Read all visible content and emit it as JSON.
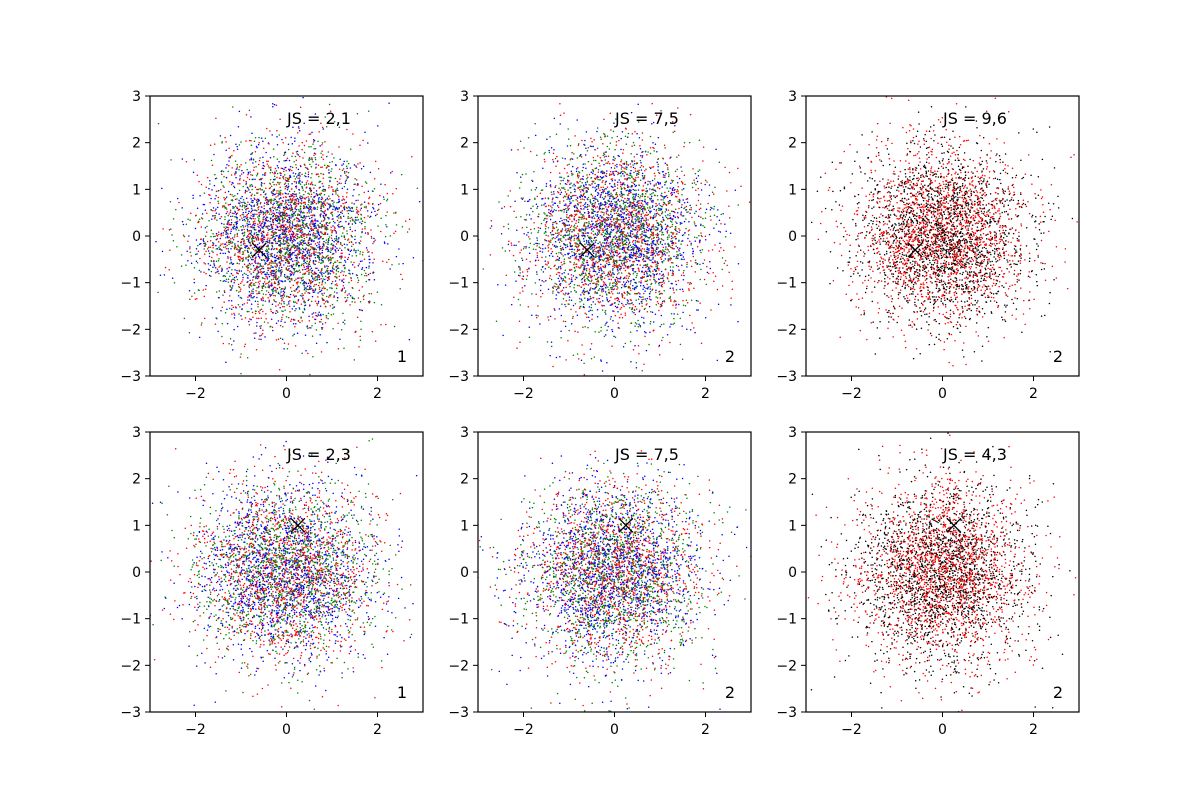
{
  "figure": {
    "background": "#ffffff",
    "axis_color": "#000000",
    "marker_color": "#000000"
  },
  "chart_data": [
    {
      "type": "scatter",
      "title": "",
      "xlabel": "",
      "ylabel": "",
      "xlim": [
        -3,
        3
      ],
      "ylim": [
        -3,
        3
      ],
      "xticks": [
        "−2",
        "0",
        "2"
      ],
      "yticks": [
        "−3",
        "−2",
        "−1",
        "0",
        "1",
        "2",
        "3"
      ],
      "annotation": "JS = 2,1",
      "corner_label": "1",
      "marker": [
        -0.6,
        -0.3
      ],
      "point_cloud": {
        "n_per_series": 1400,
        "spread": 0.95,
        "seed": 11,
        "extent": 3
      },
      "series": [
        {
          "color": "#0000ff"
        },
        {
          "color": "#ff0000"
        },
        {
          "color": "#008000"
        }
      ]
    },
    {
      "type": "scatter",
      "title": "",
      "xlabel": "",
      "ylabel": "",
      "xlim": [
        -3,
        3
      ],
      "ylim": [
        -3,
        3
      ],
      "xticks": [
        "−2",
        "0",
        "2"
      ],
      "yticks": [
        "−3",
        "−2",
        "−1",
        "0",
        "1",
        "2",
        "3"
      ],
      "annotation": "JS = 7,5",
      "corner_label": "2",
      "marker": [
        -0.6,
        -0.3
      ],
      "point_cloud": {
        "n_per_series": 1400,
        "spread": 0.95,
        "seed": 23,
        "extent": 3
      },
      "series": [
        {
          "color": "#0000ff"
        },
        {
          "color": "#ff0000"
        },
        {
          "color": "#008000"
        }
      ]
    },
    {
      "type": "scatter",
      "title": "",
      "xlabel": "",
      "ylabel": "",
      "xlim": [
        -3,
        3
      ],
      "ylim": [
        -3,
        3
      ],
      "xticks": [
        "−2",
        "0",
        "2"
      ],
      "yticks": [
        "−3",
        "−2",
        "−1",
        "0",
        "1",
        "2",
        "3"
      ],
      "annotation": "JS = 9,6",
      "corner_label": "2",
      "marker": [
        -0.6,
        -0.3
      ],
      "point_cloud": {
        "n_per_series": 1900,
        "spread": 0.95,
        "seed": 37,
        "extent": 3
      },
      "series": [
        {
          "color": "#000000"
        },
        {
          "color": "#ff0000"
        }
      ]
    },
    {
      "type": "scatter",
      "title": "",
      "xlabel": "",
      "ylabel": "",
      "xlim": [
        -3,
        3
      ],
      "ylim": [
        -3,
        3
      ],
      "xticks": [
        "−2",
        "0",
        "2"
      ],
      "yticks": [
        "−3",
        "−2",
        "−1",
        "0",
        "1",
        "2",
        "3"
      ],
      "annotation": "JS = 2,3",
      "corner_label": "1",
      "marker": [
        0.25,
        1.0
      ],
      "point_cloud": {
        "n_per_series": 1400,
        "spread": 0.95,
        "seed": 41,
        "extent": 3
      },
      "series": [
        {
          "color": "#0000ff"
        },
        {
          "color": "#ff0000"
        },
        {
          "color": "#008000"
        }
      ]
    },
    {
      "type": "scatter",
      "title": "",
      "xlabel": "",
      "ylabel": "",
      "xlim": [
        -3,
        3
      ],
      "ylim": [
        -3,
        3
      ],
      "xticks": [
        "−2",
        "0",
        "2"
      ],
      "yticks": [
        "−3",
        "−2",
        "−1",
        "0",
        "1",
        "2",
        "3"
      ],
      "annotation": "JS = 7,5",
      "corner_label": "2",
      "marker": [
        0.25,
        1.0
      ],
      "point_cloud": {
        "n_per_series": 1400,
        "spread": 0.95,
        "seed": 53,
        "extent": 3
      },
      "series": [
        {
          "color": "#0000ff"
        },
        {
          "color": "#ff0000"
        },
        {
          "color": "#008000"
        }
      ]
    },
    {
      "type": "scatter",
      "title": "",
      "xlabel": "",
      "ylabel": "",
      "xlim": [
        -3,
        3
      ],
      "ylim": [
        -3,
        3
      ],
      "xticks": [
        "−2",
        "0",
        "2"
      ],
      "yticks": [
        "−3",
        "−2",
        "−1",
        "0",
        "1",
        "2",
        "3"
      ],
      "annotation": "JS = 4,3",
      "corner_label": "2",
      "marker": [
        0.25,
        1.0
      ],
      "point_cloud": {
        "n_per_series": 1900,
        "spread": 0.95,
        "seed": 67,
        "extent": 3
      },
      "series": [
        {
          "color": "#000000"
        },
        {
          "color": "#ff0000"
        }
      ]
    }
  ]
}
